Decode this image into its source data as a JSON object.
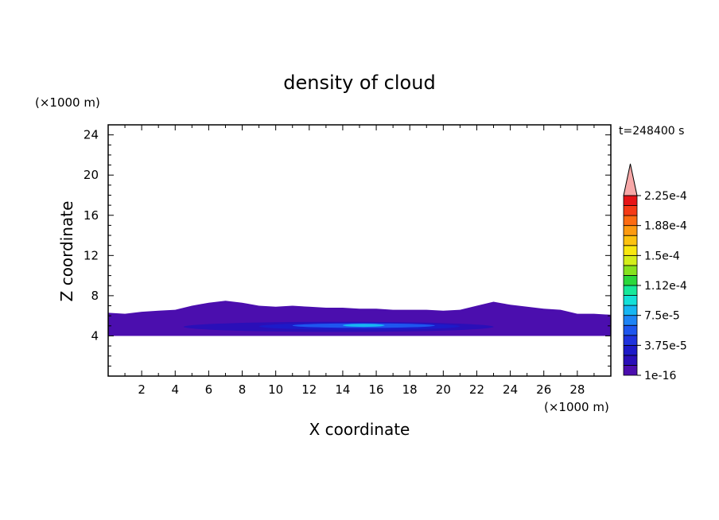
{
  "chart_data": {
    "type": "heatmap",
    "title": "density of cloud",
    "xlabel": "X coordinate",
    "ylabel": "Z coordinate",
    "x_unit": "(×1000 m)",
    "y_unit": "(×1000 m)",
    "time_label": "t=248400 s",
    "xlim": [
      0,
      30
    ],
    "ylim": [
      0,
      25
    ],
    "x_ticks": [
      2,
      4,
      6,
      8,
      10,
      12,
      14,
      16,
      18,
      20,
      22,
      24,
      26,
      28
    ],
    "y_ticks": [
      4,
      8,
      12,
      16,
      20,
      24
    ],
    "colorbar": {
      "labels": [
        "1e-16",
        "3.75e-5",
        "7.5e-5",
        "1.12e-4",
        "1.5e-4",
        "1.88e-4",
        "2.25e-4"
      ],
      "colors": [
        "#4b0eae",
        "#2a0fb8",
        "#1d1ac8",
        "#1f33dd",
        "#1e56ee",
        "#1e84f5",
        "#17b6f2",
        "#14e0d8",
        "#17e89a",
        "#2bd83c",
        "#86e21e",
        "#d4ee1a",
        "#f8e70f",
        "#fcc20f",
        "#fc9a10",
        "#fc6b12",
        "#f53a16",
        "#e61417"
      ],
      "over_color": "#f7a8a8"
    },
    "field": {
      "background": "none",
      "layers": [
        {
          "level": "1e-16",
          "color": "#4b0eae",
          "z_bottom": 4.0,
          "z_top_profile": [
            [
              0,
              6.3
            ],
            [
              1,
              6.2
            ],
            [
              2,
              6.4
            ],
            [
              3,
              6.5
            ],
            [
              4,
              6.6
            ],
            [
              5,
              7.0
            ],
            [
              6,
              7.3
            ],
            [
              7,
              7.5
            ],
            [
              8,
              7.3
            ],
            [
              9,
              7.0
            ],
            [
              10,
              6.9
            ],
            [
              11,
              7.0
            ],
            [
              12,
              6.9
            ],
            [
              13,
              6.8
            ],
            [
              14,
              6.8
            ],
            [
              15,
              6.7
            ],
            [
              16,
              6.7
            ],
            [
              17,
              6.6
            ],
            [
              18,
              6.6
            ],
            [
              19,
              6.6
            ],
            [
              20,
              6.5
            ],
            [
              21,
              6.6
            ],
            [
              22,
              7.0
            ],
            [
              23,
              7.4
            ],
            [
              24,
              7.1
            ],
            [
              25,
              6.9
            ],
            [
              26,
              6.7
            ],
            [
              27,
              6.6
            ],
            [
              28,
              6.2
            ],
            [
              29,
              6.2
            ],
            [
              30,
              6.1
            ]
          ]
        },
        {
          "level": "3.75e-5",
          "color": "#2a0fb8",
          "x_range": [
            4.5,
            23
          ],
          "z_range": [
            4.4,
            5.4
          ]
        },
        {
          "level": "7.5e-5",
          "color": "#1d1ac8",
          "x_range": [
            9,
            21
          ],
          "z_range": [
            4.6,
            5.3
          ]
        },
        {
          "level": "1.12e-4",
          "color": "#1f56ee",
          "x_range": [
            11,
            19.5
          ],
          "z_range": [
            4.8,
            5.25
          ]
        },
        {
          "level": "1.5e-4",
          "color": "#17b6f2",
          "x_range": [
            14,
            16.5
          ],
          "z_range": [
            4.9,
            5.2
          ]
        }
      ]
    }
  }
}
